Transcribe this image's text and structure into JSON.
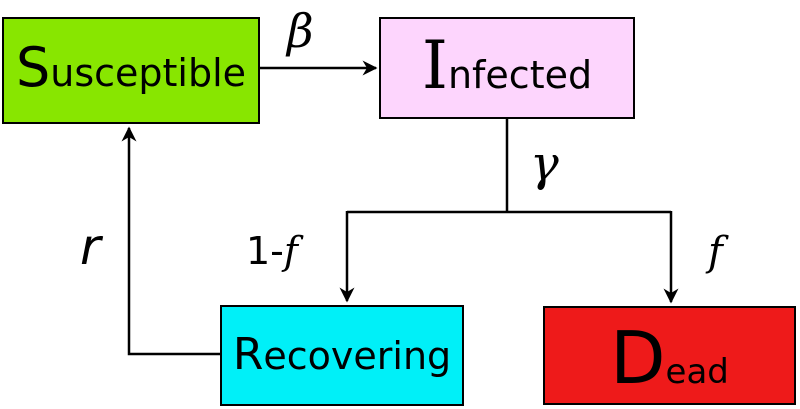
{
  "colors": {
    "susceptible": "#88e600",
    "infected": "#fdd5fd",
    "recovering": "#00f0f8",
    "dead": "#ee1a1a",
    "line": "#000000"
  },
  "nodes": {
    "susceptible": {
      "initial": "S",
      "rest": "usceptible"
    },
    "infected": {
      "initial": "I",
      "rest": "nfected"
    },
    "recovering": {
      "initial": "R",
      "rest": "ecovering"
    },
    "dead": {
      "initial": "D",
      "rest": "ead"
    }
  },
  "edges": {
    "beta": "β",
    "gamma": "γ",
    "r": "r",
    "one_minus_f_prefix": "1-",
    "one_minus_f_var": "f",
    "f": "f"
  }
}
